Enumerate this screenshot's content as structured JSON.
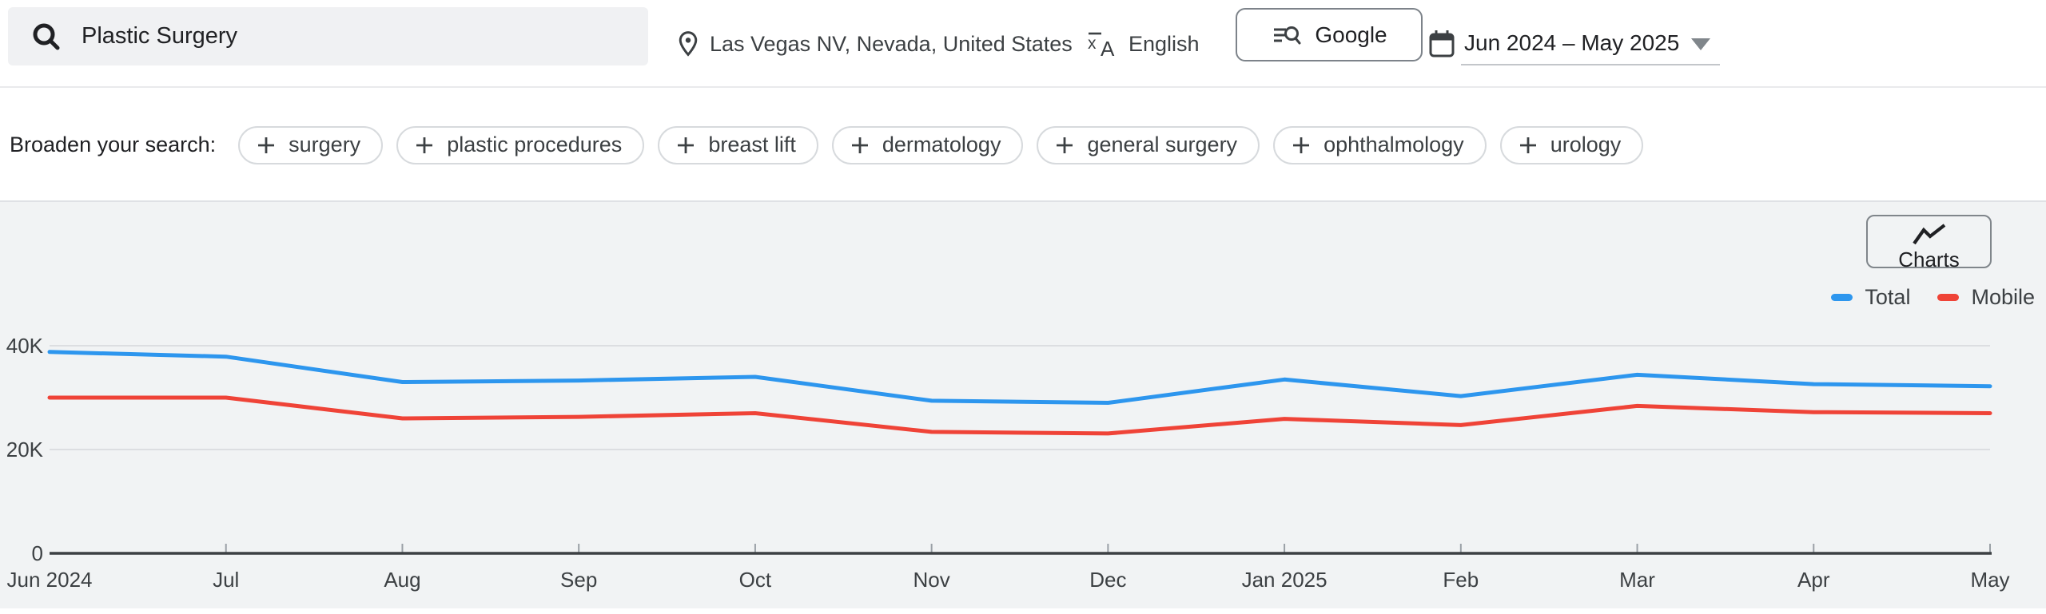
{
  "header": {
    "search": {
      "value": "Plastic Surgery"
    },
    "location": {
      "label": "Las Vegas NV, Nevada, United States"
    },
    "language": {
      "label": "English"
    },
    "engine": {
      "label": "Google"
    },
    "date_range": {
      "label": "Jun 2024 – May 2025"
    }
  },
  "broaden": {
    "label": "Broaden your search:",
    "chips": [
      "surgery",
      "plastic procedures",
      "breast lift",
      "dermatology",
      "general surgery",
      "ophthalmology",
      "urology"
    ]
  },
  "chart_panel": {
    "charts_button_label": "Charts"
  },
  "colors": {
    "total": "#2d96ee",
    "mobile": "#ef4337",
    "gridline": "#dcdee1",
    "axis": "#3c4043",
    "tick": "#9aa0a6",
    "axis_text": "#3c4043",
    "panel_bg": "#f1f3f4"
  },
  "chart_data": {
    "type": "line",
    "x": [
      "Jun 2024",
      "Jul",
      "Aug",
      "Sep",
      "Oct",
      "Nov",
      "Dec",
      "Jan 2025",
      "Feb",
      "Mar",
      "Apr",
      "May"
    ],
    "series": [
      {
        "name": "Total",
        "color": "#2d96ee",
        "values": [
          38800,
          37900,
          33000,
          33300,
          34000,
          29400,
          29000,
          33500,
          30300,
          34400,
          32600,
          32200
        ]
      },
      {
        "name": "Mobile",
        "color": "#ef4337",
        "values": [
          30000,
          30000,
          26000,
          26300,
          27000,
          23400,
          23100,
          25900,
          24700,
          28400,
          27200,
          27000
        ]
      }
    ],
    "title": "",
    "xlabel": "",
    "ylabel": "",
    "y_ticks": [
      {
        "label": "40K",
        "value": 40000
      },
      {
        "label": "20K",
        "value": 20000
      },
      {
        "label": "0",
        "value": 0
      }
    ],
    "ylim": [
      0,
      43800
    ],
    "grid": true,
    "legend_position": "top-right"
  }
}
